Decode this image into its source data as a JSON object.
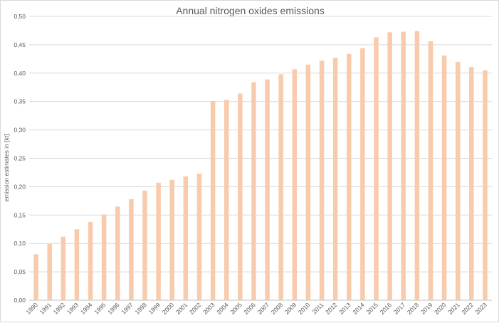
{
  "chart_data": {
    "type": "bar",
    "title": "Annual nitrogen oxides emissions",
    "ylabel": "emission estimates in [kt]",
    "xlabel": "",
    "ylim": [
      0,
      0.5
    ],
    "ytick_step": 0.05,
    "ytick_labels": [
      "0,00",
      "0,05",
      "0,10",
      "0,15",
      "0,20",
      "0,25",
      "0,30",
      "0,35",
      "0,40",
      "0,45",
      "0,50"
    ],
    "grid": true,
    "bar_color": "#f8cbad",
    "categories": [
      "1990",
      "1991",
      "1992",
      "1993",
      "1994",
      "1995",
      "1996",
      "1997",
      "1998",
      "1999",
      "2000",
      "2001",
      "2002",
      "2003",
      "2004",
      "2005",
      "2006",
      "2007",
      "2008",
      "2009",
      "2010",
      "2011",
      "2012",
      "2013",
      "2014",
      "2015",
      "2016",
      "2017",
      "2018",
      "2019",
      "2020",
      "2021",
      "2022",
      "2023"
    ],
    "values": [
      0.081,
      0.099,
      0.112,
      0.125,
      0.138,
      0.151,
      0.165,
      0.178,
      0.193,
      0.207,
      0.212,
      0.218,
      0.223,
      0.351,
      0.353,
      0.364,
      0.384,
      0.389,
      0.398,
      0.407,
      0.415,
      0.422,
      0.427,
      0.434,
      0.444,
      0.463,
      0.472,
      0.473,
      0.474,
      0.456,
      0.431,
      0.42,
      0.411,
      0.405
    ]
  }
}
